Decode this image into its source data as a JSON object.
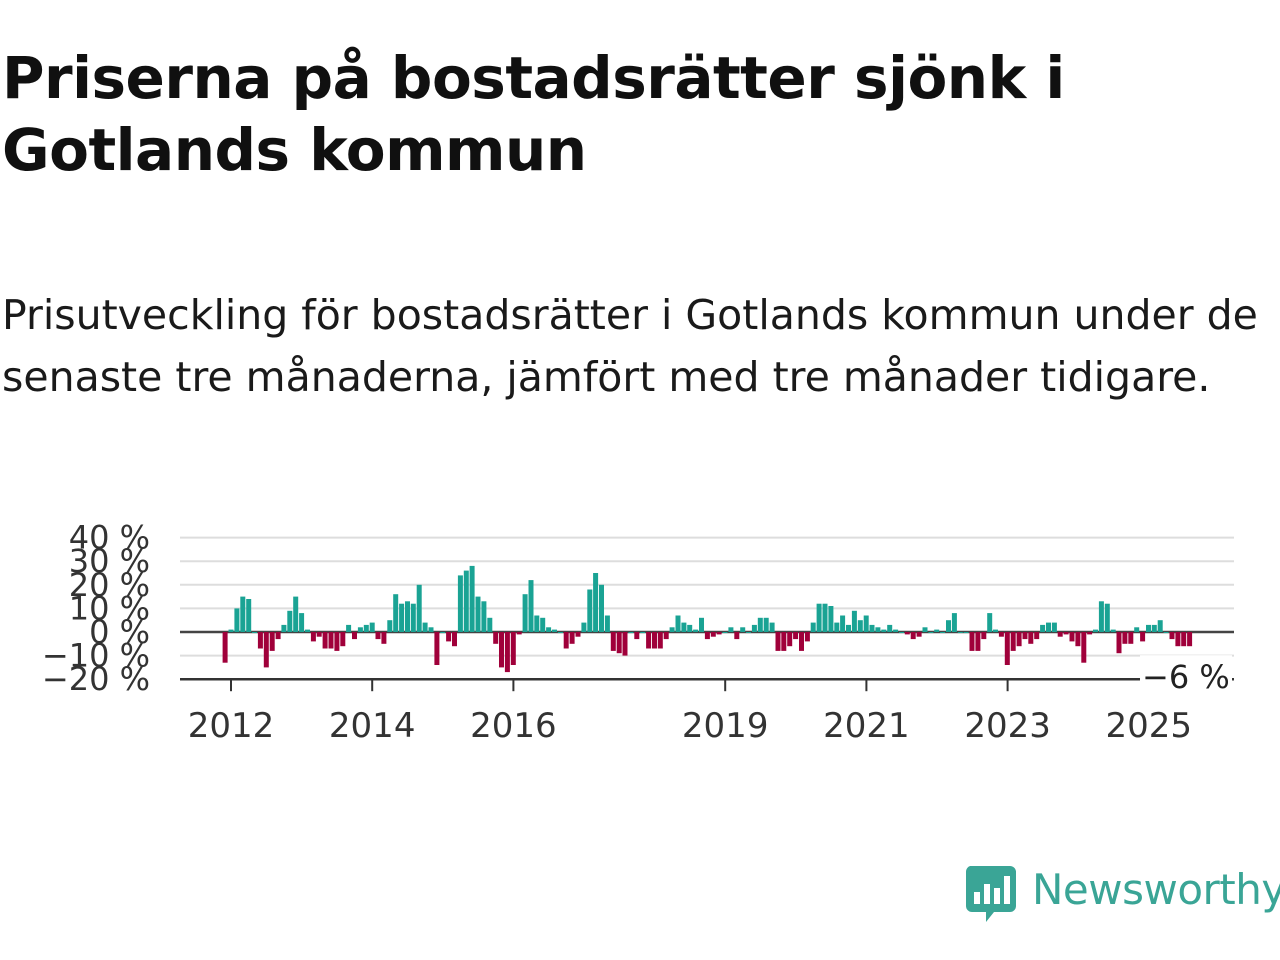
{
  "title": "Priserna på bostadsrätter sjönk i Gotlands kommun",
  "subtitle": "Prisutveckling för bostadsrätter i Gotlands kommun under de senaste tre månaderna, jämfört med tre månader tidigare.",
  "brand": {
    "name": "Newsworthy",
    "color": "#3aa596"
  },
  "colors": {
    "positive": "#1aa394",
    "negative": "#a0003a",
    "grid": "#dddddd",
    "axis": "#333333",
    "zero_line": "#444444"
  },
  "chart_data": {
    "type": "bar",
    "ylabel": "",
    "xlabel": "",
    "ylim": [
      -20,
      40
    ],
    "yticks": [
      "40 %",
      "30 %",
      "20 %",
      "10 %",
      "0 %",
      "−10 %",
      "−20 %"
    ],
    "ytick_values": [
      40,
      30,
      20,
      10,
      0,
      -10,
      -20
    ],
    "xticks": [
      "2012",
      "2014",
      "2016",
      "2019",
      "2021",
      "2023",
      "2025"
    ],
    "xtick_values": [
      2012.0,
      2014.0,
      2016.0,
      2019.0,
      2021.0,
      2023.0,
      2025.0
    ],
    "grid": true,
    "last_label": "−6 %",
    "x_start": 2011.917,
    "x_step": 0.0833,
    "values": [
      -13,
      1,
      10,
      15,
      14,
      0,
      -7,
      -15,
      -8,
      -3,
      3,
      9,
      15,
      8,
      1,
      -4,
      -2,
      -7,
      -7,
      -8,
      -6,
      3,
      -3,
      2,
      3,
      4,
      -3,
      -5,
      5,
      16,
      12,
      13,
      12,
      20,
      4,
      2,
      -14,
      0,
      -4,
      -6,
      24,
      26,
      28,
      15,
      13,
      6,
      -5,
      -15,
      -17,
      -14,
      -1,
      16,
      22,
      7,
      6,
      2,
      1,
      0,
      -7,
      -5,
      -2,
      4,
      18,
      25,
      20,
      7,
      -8,
      -9,
      -10,
      0,
      -3,
      0,
      -7,
      -7,
      -7,
      -3,
      2,
      7,
      4,
      3,
      1,
      6,
      -3,
      -2,
      -1,
      0,
      2,
      -3,
      2,
      0,
      3,
      6,
      6,
      4,
      -8,
      -8,
      -6,
      -3,
      -8,
      -4,
      4,
      12,
      12,
      11,
      4,
      7,
      3,
      9,
      5,
      7,
      3,
      2,
      1,
      3,
      1,
      0,
      -1,
      -3,
      -2,
      2,
      0,
      1,
      0,
      5,
      8,
      0,
      0,
      -8,
      -8,
      -3,
      8,
      1,
      -2,
      -14,
      -8,
      -6,
      -3,
      -5,
      -3,
      3,
      4,
      4,
      -2,
      -1,
      -4,
      -6,
      -13,
      -1,
      1,
      13,
      12,
      1,
      -9,
      -5,
      -5,
      2,
      -4,
      3,
      3,
      5,
      0,
      -3,
      -6,
      -6,
      -6
    ]
  }
}
